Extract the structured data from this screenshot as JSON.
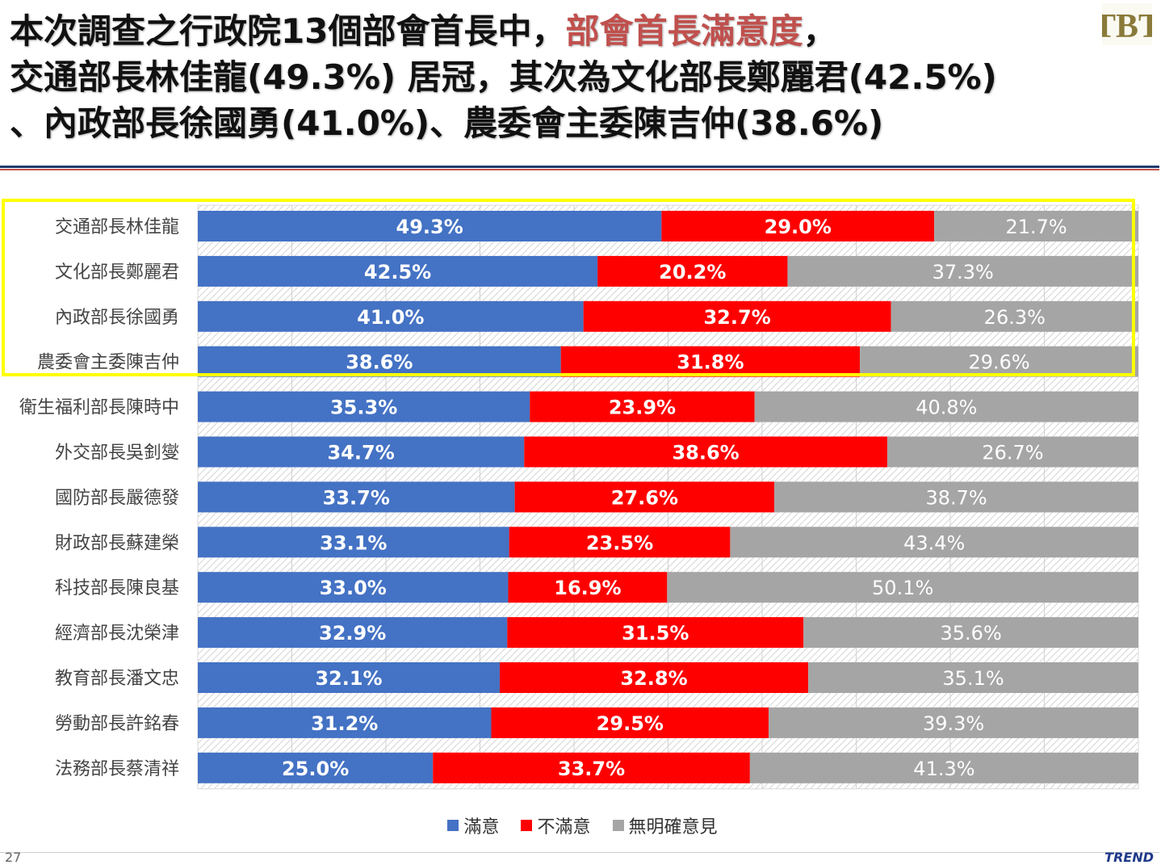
{
  "title": {
    "line1_a": "本次調查之行政院13個部會首長中，",
    "line1_b": "部會首長滿意度",
    "line1_c": "，",
    "line2": "交通部長林佳龍(49.3%) 居冠，其次為文化部長鄭麗君(42.5%)",
    "line3": "、內政部長徐國勇(41.0%)、農委會主委陳吉仲(38.6%)"
  },
  "logo_text": "TBT",
  "page_number": "27",
  "footer_brand": "TREND",
  "colors": {
    "satisfied": "#4472c4",
    "unsatisfied": "#ff0000",
    "no_opinion": "#a5a5a5",
    "highlight": "#ffff00"
  },
  "chart_data": {
    "type": "bar",
    "orientation": "horizontal",
    "stacked": "100%",
    "categories": [
      "交通部長林佳龍",
      "文化部長鄭麗君",
      "內政部長徐國勇",
      "農委會主委陳吉仲",
      "衛生福利部長陳時中",
      "外交部長吳釗燮",
      "國防部長嚴德發",
      "財政部長蘇建榮",
      "科技部長陳良基",
      "經濟部長沈榮津",
      "教育部長潘文忠",
      "勞動部長許銘春",
      "法務部長蔡清祥"
    ],
    "series": [
      {
        "name": "滿意",
        "values": [
          49.3,
          42.5,
          41.0,
          38.6,
          35.3,
          34.7,
          33.7,
          33.1,
          33.0,
          32.9,
          32.1,
          31.2,
          25.0
        ]
      },
      {
        "name": "不滿意",
        "values": [
          29.0,
          20.2,
          32.7,
          31.8,
          23.9,
          38.6,
          27.6,
          23.5,
          16.9,
          31.5,
          32.8,
          29.5,
          33.7
        ]
      },
      {
        "name": "無明確意見",
        "values": [
          21.7,
          37.3,
          26.3,
          29.6,
          40.8,
          26.7,
          38.7,
          43.4,
          50.1,
          35.6,
          35.1,
          39.3,
          41.3
        ]
      }
    ],
    "labels": [
      [
        "49.3%",
        "29.0%",
        "21.7%"
      ],
      [
        "42.5%",
        "20.2%",
        "37.3%"
      ],
      [
        "41.0%",
        "32.7%",
        "26.3%"
      ],
      [
        "38.6%",
        "31.8%",
        "29.6%"
      ],
      [
        "35.3%",
        "23.9%",
        "40.8%"
      ],
      [
        "34.7%",
        "38.6%",
        "26.7%"
      ],
      [
        "33.7%",
        "27.6%",
        "38.7%"
      ],
      [
        "33.1%",
        "23.5%",
        "43.4%"
      ],
      [
        "33.0%",
        "16.9%",
        "50.1%"
      ],
      [
        "32.9%",
        "31.5%",
        "35.6%"
      ],
      [
        "32.1%",
        "32.8%",
        "35.1%"
      ],
      [
        "31.2%",
        "29.5%",
        "39.3%"
      ],
      [
        "25.0%",
        "33.7%",
        "41.3%"
      ]
    ],
    "xlim": [
      0,
      100
    ],
    "grid": true,
    "legend": "bottom",
    "highlighted_rows": 4
  }
}
